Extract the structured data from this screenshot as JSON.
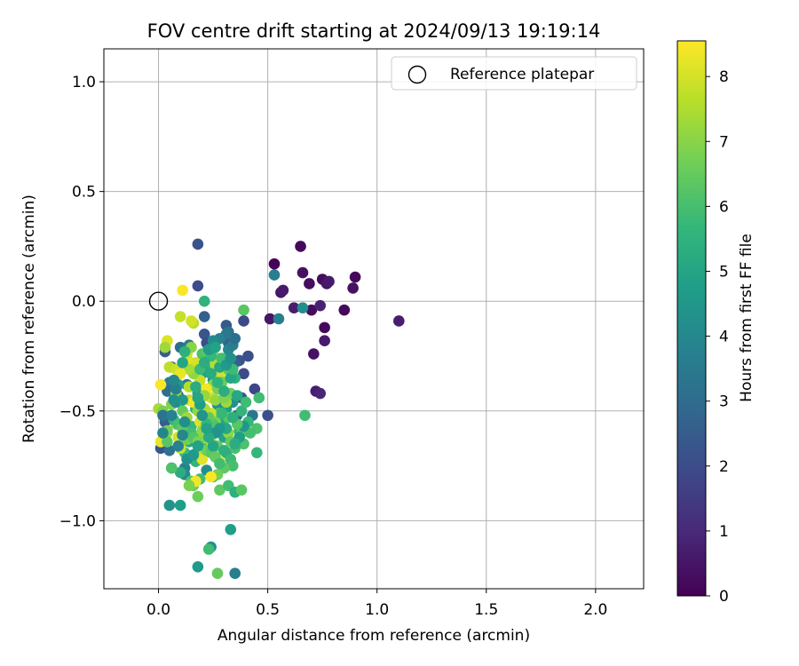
{
  "chart_data": {
    "type": "scatter",
    "title": "FOV centre drift starting at 2024/09/13 19:19:14",
    "xlabel": "Angular distance from reference (arcmin)",
    "ylabel": "Rotation from reference (arcmin)",
    "xlim": [
      -0.25,
      2.22
    ],
    "ylim": [
      -1.31,
      1.15
    ],
    "xticks": [
      0.0,
      0.5,
      1.0,
      1.5,
      2.0
    ],
    "xtick_labels": [
      "0.0",
      "0.5",
      "1.0",
      "1.5",
      "2.0"
    ],
    "yticks": [
      1.0,
      0.5,
      0.0,
      -0.5,
      -1.0
    ],
    "ytick_labels": [
      "1.0",
      "0.5",
      "0.0",
      "−0.5",
      "−1.0"
    ],
    "grid": true,
    "legend": {
      "position": "top-right",
      "entries": [
        {
          "label": "Reference platepar",
          "marker": "open-circle"
        }
      ]
    },
    "reference_point": {
      "x": 0.0,
      "y": 0.0
    },
    "colormap": "viridis",
    "colorbar": {
      "label": "Hours from first FF file",
      "range": [
        0,
        8.55
      ],
      "ticks": [
        0,
        1,
        2,
        3,
        4,
        5,
        6,
        7,
        8
      ],
      "tick_labels": [
        "0",
        "1",
        "2",
        "3",
        "4",
        "5",
        "6",
        "7",
        "8"
      ]
    },
    "points": [
      [
        0.53,
        0.17,
        0.1
      ],
      [
        0.65,
        0.25,
        0.2
      ],
      [
        0.66,
        0.13,
        0.4
      ],
      [
        0.69,
        0.08,
        0.3
      ],
      [
        0.75,
        0.1,
        0.3
      ],
      [
        0.77,
        0.08,
        0.5
      ],
      [
        0.78,
        0.09,
        0.6
      ],
      [
        0.89,
        0.06,
        0.4
      ],
      [
        0.9,
        0.11,
        0.2
      ],
      [
        0.56,
        0.04,
        0.5
      ],
      [
        0.57,
        0.05,
        0.6
      ],
      [
        0.62,
        -0.03,
        0.7
      ],
      [
        0.7,
        -0.04,
        0.3
      ],
      [
        0.74,
        -0.02,
        0.8
      ],
      [
        0.76,
        -0.12,
        0.2
      ],
      [
        0.76,
        -0.18,
        0.6
      ],
      [
        0.71,
        -0.24,
        0.4
      ],
      [
        0.72,
        -0.41,
        0.7
      ],
      [
        0.74,
        -0.42,
        0.9
      ],
      [
        0.51,
        -0.08,
        0.5
      ],
      [
        0.85,
        -0.04,
        0.2
      ],
      [
        1.1,
        -0.09,
        0.7
      ],
      [
        0.66,
        -0.03,
        4.2
      ],
      [
        0.18,
        0.26,
        2.2
      ],
      [
        0.18,
        0.07,
        2.0
      ],
      [
        0.53,
        0.12,
        3.6
      ],
      [
        0.21,
        0.0,
        5.5
      ],
      [
        0.39,
        -0.04,
        6.3
      ],
      [
        0.55,
        -0.08,
        3.7
      ],
      [
        0.21,
        -0.07,
        2.6
      ],
      [
        0.31,
        -0.11,
        2.4
      ],
      [
        0.32,
        -0.14,
        3.2
      ],
      [
        0.39,
        -0.09,
        1.9
      ],
      [
        0.32,
        -0.19,
        2.7
      ],
      [
        0.21,
        -0.15,
        2.3
      ],
      [
        0.22,
        -0.19,
        2.0
      ],
      [
        0.1,
        -0.21,
        3.1
      ],
      [
        0.14,
        -0.2,
        3.5
      ],
      [
        0.03,
        -0.23,
        2.5
      ],
      [
        0.37,
        -0.27,
        2.2
      ],
      [
        0.35,
        -0.28,
        2.6
      ],
      [
        0.41,
        -0.25,
        2.1
      ],
      [
        0.39,
        -0.33,
        1.9
      ],
      [
        0.44,
        -0.4,
        1.8
      ],
      [
        0.38,
        -0.44,
        2.2
      ],
      [
        0.46,
        -0.44,
        5.9
      ],
      [
        0.5,
        -0.52,
        2.1
      ],
      [
        0.43,
        -0.52,
        3.4
      ],
      [
        0.45,
        -0.58,
        6.1
      ],
      [
        0.45,
        -0.69,
        5.7
      ],
      [
        0.67,
        -0.52,
        5.9
      ],
      [
        0.05,
        -0.37,
        3.5
      ],
      [
        0.04,
        -0.41,
        3.1
      ],
      [
        0.09,
        -0.43,
        2.7
      ],
      [
        0.13,
        -0.38,
        3.3
      ],
      [
        0.06,
        -0.3,
        2.6
      ],
      [
        0.03,
        -0.55,
        2.5
      ],
      [
        0.01,
        -0.67,
        2.3
      ],
      [
        0.05,
        -0.68,
        3.2
      ],
      [
        0.06,
        -0.76,
        3.5
      ],
      [
        0.05,
        -0.93,
        4.4
      ],
      [
        0.1,
        -0.93,
        4.8
      ],
      [
        0.12,
        -0.76,
        3.8
      ],
      [
        0.12,
        -0.79,
        4.1
      ],
      [
        0.17,
        -0.73,
        5.6
      ],
      [
        0.22,
        -0.77,
        4.2
      ],
      [
        0.25,
        -0.8,
        5.8
      ],
      [
        0.28,
        -0.86,
        6.4
      ],
      [
        0.32,
        -0.84,
        5.9
      ],
      [
        0.35,
        -0.87,
        5.4
      ],
      [
        0.38,
        -0.86,
        6.3
      ],
      [
        0.33,
        -1.04,
        4.8
      ],
      [
        0.24,
        -1.12,
        4.2
      ],
      [
        0.23,
        -1.13,
        5.9
      ],
      [
        0.18,
        -1.21,
        4.6
      ],
      [
        0.35,
        -1.24,
        3.6
      ],
      [
        0.27,
        -1.24,
        6.5
      ],
      [
        0.18,
        -0.89,
        6.6
      ],
      [
        0.27,
        -0.66,
        6.5
      ],
      [
        0.3,
        -0.62,
        4.9
      ],
      [
        0.31,
        -0.69,
        5.2
      ],
      [
        0.33,
        -0.72,
        5.8
      ],
      [
        0.35,
        -0.67,
        6.0
      ],
      [
        0.37,
        -0.59,
        5.5
      ],
      [
        0.38,
        -0.6,
        6.2
      ],
      [
        0.39,
        -0.65,
        6.1
      ],
      [
        0.36,
        -0.52,
        3.0
      ],
      [
        0.34,
        -0.46,
        4.3
      ],
      [
        0.31,
        -0.49,
        4.7
      ],
      [
        0.29,
        -0.55,
        5.1
      ],
      [
        0.27,
        -0.47,
        4.3
      ],
      [
        0.25,
        -0.36,
        4.0
      ],
      [
        0.23,
        -0.31,
        5.2
      ],
      [
        0.2,
        -0.27,
        5.6
      ],
      [
        0.2,
        -0.33,
        4.7
      ],
      [
        0.18,
        -0.42,
        4.9
      ],
      [
        0.17,
        -0.49,
        5.4
      ],
      [
        0.15,
        -0.57,
        5.7
      ],
      [
        0.14,
        -0.64,
        5.1
      ],
      [
        0.12,
        -0.69,
        5.8
      ],
      [
        0.15,
        -0.82,
        6.2
      ],
      [
        0.16,
        -0.84,
        6.6
      ],
      [
        0.19,
        -0.81,
        5.9
      ],
      [
        0.21,
        -0.67,
        6.0
      ],
      [
        0.22,
        -0.61,
        6.4
      ],
      [
        0.24,
        -0.59,
        6.6
      ],
      [
        0.26,
        -0.55,
        6.9
      ],
      [
        0.28,
        -0.51,
        6.4
      ],
      [
        0.31,
        -0.46,
        7.3
      ],
      [
        0.33,
        -0.42,
        6.7
      ],
      [
        0.35,
        -0.35,
        5.5
      ],
      [
        0.3,
        -0.31,
        6.2
      ],
      [
        0.27,
        -0.26,
        6.8
      ],
      [
        0.26,
        -0.29,
        7.6
      ],
      [
        0.25,
        -0.38,
        7.0
      ],
      [
        0.24,
        -0.44,
        8.0
      ],
      [
        0.22,
        -0.4,
        8.4
      ],
      [
        0.21,
        -0.43,
        7.2
      ],
      [
        0.19,
        -0.36,
        7.8
      ],
      [
        0.18,
        -0.29,
        7.5
      ],
      [
        0.17,
        -0.28,
        8.0
      ],
      [
        0.16,
        -0.33,
        7.1
      ],
      [
        0.14,
        -0.31,
        7.4
      ],
      [
        0.13,
        -0.26,
        8.2
      ],
      [
        0.13,
        -0.24,
        7.9
      ],
      [
        0.15,
        -0.21,
        7.0
      ],
      [
        0.16,
        -0.1,
        7.6
      ],
      [
        0.15,
        -0.09,
        8.0
      ],
      [
        0.1,
        -0.07,
        7.8
      ],
      [
        0.11,
        0.05,
        8.5
      ],
      [
        0.04,
        -0.18,
        8.1
      ],
      [
        0.03,
        -0.21,
        7.3
      ],
      [
        0.05,
        -0.3,
        7.7
      ],
      [
        0.08,
        -0.31,
        7.9
      ],
      [
        0.1,
        -0.33,
        8.3
      ],
      [
        0.08,
        -0.42,
        7.2
      ],
      [
        0.06,
        -0.47,
        6.9
      ],
      [
        0.01,
        -0.38,
        8.5
      ],
      [
        0.0,
        -0.49,
        7.4
      ],
      [
        0.02,
        -0.5,
        6.8
      ],
      [
        0.04,
        -0.6,
        7.6
      ],
      [
        0.01,
        -0.64,
        8.3
      ],
      [
        0.09,
        -0.62,
        8.0
      ],
      [
        0.1,
        -0.67,
        7.8
      ],
      [
        0.08,
        -0.56,
        7.1
      ],
      [
        0.11,
        -0.5,
        6.5
      ],
      [
        0.13,
        -0.53,
        7.3
      ],
      [
        0.14,
        -0.45,
        7.8
      ],
      [
        0.14,
        -0.39,
        7.6
      ],
      [
        0.16,
        -0.46,
        8.4
      ],
      [
        0.18,
        -0.5,
        7.2
      ],
      [
        0.19,
        -0.55,
        8.1
      ],
      [
        0.2,
        -0.62,
        7.0
      ],
      [
        0.19,
        -0.7,
        7.7
      ],
      [
        0.2,
        -0.72,
        8.2
      ],
      [
        0.22,
        -0.68,
        6.7
      ],
      [
        0.24,
        -0.64,
        7.4
      ],
      [
        0.25,
        -0.56,
        6.2
      ],
      [
        0.24,
        -0.51,
        7.9
      ],
      [
        0.23,
        -0.53,
        6.4
      ],
      [
        0.21,
        -0.49,
        7.5
      ],
      [
        0.26,
        -0.45,
        7.2
      ],
      [
        0.27,
        -0.4,
        6.8
      ],
      [
        0.28,
        -0.34,
        7.9
      ],
      [
        0.29,
        -0.37,
        6.6
      ],
      [
        0.3,
        -0.44,
        6.9
      ],
      [
        0.32,
        -0.53,
        6.3
      ],
      [
        0.32,
        -0.6,
        7.1
      ],
      [
        0.33,
        -0.64,
        6.5
      ],
      [
        0.34,
        -0.75,
        6.0
      ],
      [
        0.3,
        -0.76,
        6.4
      ],
      [
        0.28,
        -0.73,
        8.3
      ],
      [
        0.27,
        -0.79,
        6.7
      ],
      [
        0.24,
        -0.8,
        8.5
      ],
      [
        0.17,
        -0.82,
        8.4
      ],
      [
        0.14,
        -0.84,
        6.8
      ],
      [
        0.1,
        -0.78,
        5.3
      ],
      [
        0.06,
        -0.76,
        6.1
      ],
      [
        0.04,
        -0.64,
        6.3
      ],
      [
        0.04,
        -0.59,
        6.7
      ],
      [
        0.07,
        -0.54,
        5.6
      ],
      [
        0.09,
        -0.56,
        6.0
      ],
      [
        0.11,
        -0.58,
        6.4
      ],
      [
        0.13,
        -0.63,
        6.7
      ],
      [
        0.15,
        -0.6,
        5.9
      ],
      [
        0.16,
        -0.62,
        6.2
      ],
      [
        0.18,
        -0.64,
        6.8
      ],
      [
        0.2,
        -0.59,
        7.1
      ],
      [
        0.22,
        -0.56,
        5.7
      ],
      [
        0.24,
        -0.69,
        6.3
      ],
      [
        0.26,
        -0.71,
        6.5
      ],
      [
        0.28,
        -0.74,
        5.9
      ],
      [
        0.3,
        -0.68,
        5.4
      ],
      [
        0.31,
        -0.58,
        5.1
      ],
      [
        0.29,
        -0.51,
        5.7
      ],
      [
        0.3,
        -0.41,
        5.3
      ],
      [
        0.33,
        -0.35,
        5.0
      ],
      [
        0.34,
        -0.31,
        5.8
      ],
      [
        0.36,
        -0.43,
        5.1
      ],
      [
        0.38,
        -0.5,
        5.6
      ],
      [
        0.4,
        -0.46,
        5.9
      ],
      [
        0.41,
        -0.55,
        5.7
      ],
      [
        0.42,
        -0.6,
        6.0
      ],
      [
        0.39,
        -0.57,
        4.5
      ],
      [
        0.37,
        -0.62,
        4.8
      ],
      [
        0.35,
        -0.65,
        5.3
      ],
      [
        0.36,
        -0.56,
        6.3
      ],
      [
        0.34,
        -0.53,
        5.4
      ],
      [
        0.28,
        -0.58,
        4.6
      ],
      [
        0.26,
        -0.6,
        4.4
      ],
      [
        0.25,
        -0.66,
        5.0
      ],
      [
        0.23,
        -0.62,
        5.2
      ],
      [
        0.22,
        -0.58,
        4.9
      ],
      [
        0.2,
        -0.52,
        4.4
      ],
      [
        0.19,
        -0.47,
        4.7
      ],
      [
        0.18,
        -0.44,
        5.0
      ],
      [
        0.17,
        -0.39,
        5.3
      ],
      [
        0.19,
        -0.31,
        5.8
      ],
      [
        0.2,
        -0.24,
        6.1
      ],
      [
        0.22,
        -0.23,
        6.3
      ],
      [
        0.24,
        -0.25,
        5.7
      ],
      [
        0.21,
        -0.28,
        5.3
      ],
      [
        0.24,
        -0.33,
        5.2
      ],
      [
        0.27,
        -0.37,
        5.5
      ],
      [
        0.28,
        -0.3,
        5.0
      ],
      [
        0.29,
        -0.26,
        5.9
      ],
      [
        0.31,
        -0.29,
        4.6
      ],
      [
        0.33,
        -0.26,
        4.3
      ],
      [
        0.32,
        -0.22,
        4.0
      ],
      [
        0.34,
        -0.2,
        3.6
      ],
      [
        0.35,
        -0.17,
        3.1
      ],
      [
        0.31,
        -0.15,
        3.4
      ],
      [
        0.28,
        -0.17,
        3.8
      ],
      [
        0.25,
        -0.18,
        4.1
      ],
      [
        0.23,
        -0.22,
        4.6
      ],
      [
        0.26,
        -0.21,
        4.9
      ],
      [
        0.12,
        -0.23,
        5.4
      ],
      [
        0.11,
        -0.28,
        5.0
      ],
      [
        0.09,
        -0.38,
        4.7
      ],
      [
        0.08,
        -0.46,
        4.1
      ],
      [
        0.11,
        -0.45,
        4.5
      ],
      [
        0.12,
        -0.55,
        4.2
      ],
      [
        0.11,
        -0.61,
        4.0
      ],
      [
        0.09,
        -0.66,
        3.8
      ],
      [
        0.13,
        -0.72,
        4.3
      ],
      [
        0.16,
        -0.7,
        4.6
      ],
      [
        0.18,
        -0.66,
        4.9
      ],
      [
        0.02,
        -0.6,
        3.9
      ],
      [
        0.02,
        -0.52,
        3.3
      ],
      [
        0.06,
        -0.52,
        3.8
      ],
      [
        0.07,
        -0.45,
        4.2
      ],
      [
        0.08,
        -0.4,
        3.7
      ],
      [
        0.07,
        -0.36,
        4.0
      ]
    ]
  }
}
